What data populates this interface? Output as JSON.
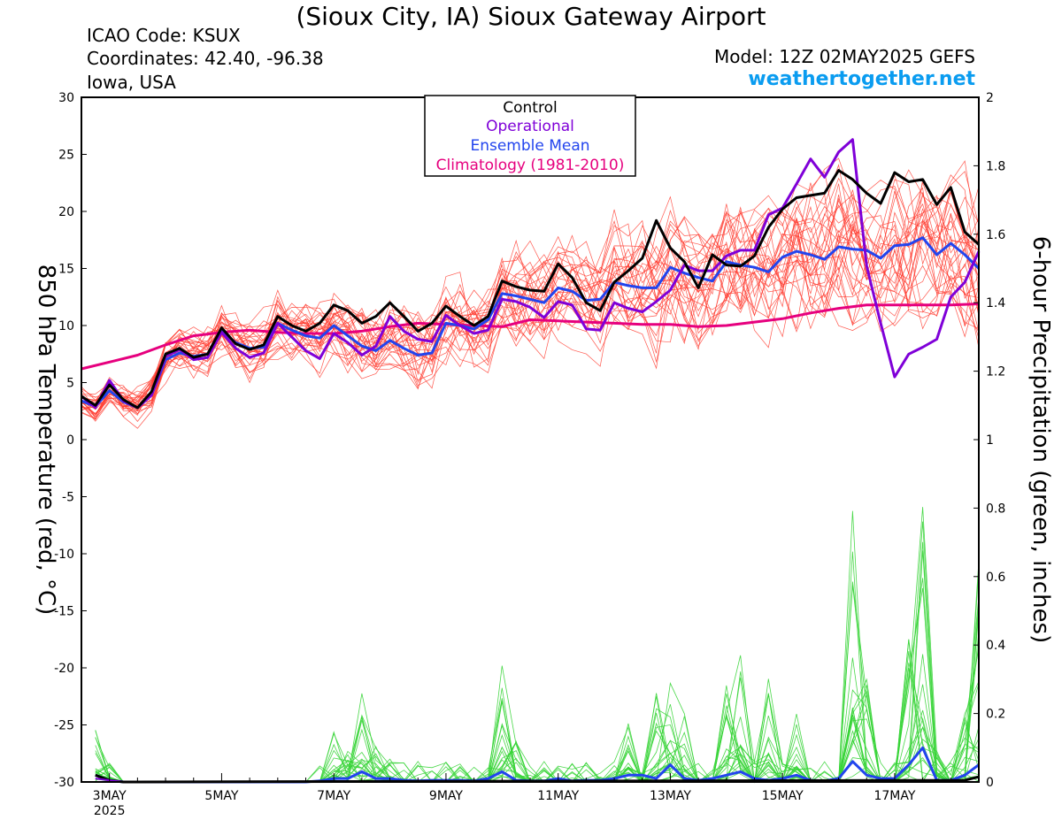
{
  "header": {
    "title": "(Sioux City, IA) Sioux Gateway Airport",
    "icao": "ICAO Code: KSUX",
    "coordinates": "Coordinates: 42.40, -96.38",
    "region": "Iowa, USA",
    "model": "Model: 12Z 02MAY2025 GEFS",
    "site": "weathertogether.net"
  },
  "colors": {
    "control": "#000000",
    "operational": "#7f00d8",
    "ensemble_mean": "#2244ee",
    "climatology": "#e6007e",
    "members_temp": "#ff3b2f",
    "members_precip": "#36d436",
    "site_link": "#0a9cf0"
  },
  "chart_data": {
    "type": "line",
    "ylabel": "850 hPa Temperature (red, °C)",
    "y2label": "6-hour Precipitation (green, inches)",
    "ylim": [
      -30,
      30
    ],
    "y2lim": [
      0,
      2
    ],
    "yticks": [
      "30",
      "25",
      "20",
      "15",
      "10",
      "5",
      "0",
      "-5",
      "-10",
      "-15",
      "-20",
      "-25",
      "-30"
    ],
    "y2ticks": [
      "2",
      "1.8",
      "1.6",
      "1.4",
      "1.2",
      "1",
      "0.8",
      "0.6",
      "0.4",
      "0.2",
      "0"
    ],
    "xticks": [
      {
        "day": 3,
        "label": "3MAY",
        "sub": "2025"
      },
      {
        "day": 5,
        "label": "5MAY"
      },
      {
        "day": 7,
        "label": "7MAY"
      },
      {
        "day": 9,
        "label": "9MAY"
      },
      {
        "day": 11,
        "label": "11MAY"
      },
      {
        "day": 13,
        "label": "13MAY"
      },
      {
        "day": 15,
        "label": "15MAY"
      },
      {
        "day": 17,
        "label": "17MAY"
      }
    ],
    "xlim_days": [
      2.5,
      18.5
    ],
    "legend": [
      "Control",
      "Operational",
      "Ensemble Mean",
      "Climatology (1981-2010)"
    ],
    "grid": false,
    "series": [
      {
        "name": "Control",
        "x": [
          2.5,
          2.75,
          3.0,
          3.25,
          3.5,
          3.75,
          4.0,
          4.25,
          4.5,
          4.75,
          5.0,
          5.25,
          5.5,
          5.75,
          6.0,
          6.25,
          6.5,
          6.75,
          7.0,
          7.25,
          7.5,
          7.75,
          8.0,
          8.25,
          8.5,
          8.75,
          9.0,
          9.25,
          9.5,
          9.75,
          10.0,
          10.25,
          10.5,
          10.75,
          11.0,
          11.25,
          11.5,
          11.75,
          12.0,
          12.25,
          12.5,
          12.75,
          13.0,
          13.25,
          13.5,
          13.75,
          14.0,
          14.25,
          14.5,
          14.75,
          15.0,
          15.25,
          15.5,
          15.75,
          16.0,
          16.25,
          16.5,
          16.75,
          17.0,
          17.25,
          17.5,
          17.75,
          18.0,
          18.25,
          18.5
        ],
        "y": [
          3.8,
          3.0,
          4.8,
          3.5,
          2.8,
          4.2,
          7.5,
          8.0,
          7.2,
          7.5,
          9.8,
          8.4,
          7.9,
          8.3,
          10.8,
          10.0,
          9.5,
          10.2,
          11.8,
          11.3,
          10.2,
          10.8,
          12.0,
          10.8,
          9.5,
          10.2,
          11.7,
          10.8,
          10.0,
          10.8,
          13.9,
          13.4,
          13.1,
          13.0,
          15.4,
          14.2,
          12.0,
          11.3,
          13.8,
          14.8,
          15.9,
          19.2,
          16.8,
          15.6,
          13.3,
          16.2,
          15.3,
          15.2,
          16.1,
          18.6,
          20.2,
          21.2,
          21.4,
          21.6,
          23.6,
          22.8,
          21.6,
          20.7,
          23.4,
          22.6,
          22.8,
          20.6,
          22.1,
          18.2,
          17.1
        ]
      },
      {
        "name": "Operational",
        "x": [
          2.5,
          2.75,
          3.0,
          3.25,
          3.5,
          3.75,
          4.0,
          4.25,
          4.5,
          4.75,
          5.0,
          5.25,
          5.5,
          5.75,
          6.0,
          6.25,
          6.5,
          6.75,
          7.0,
          7.25,
          7.5,
          7.75,
          8.0,
          8.25,
          8.5,
          8.75,
          9.0,
          9.25,
          9.5,
          9.75,
          10.0,
          10.25,
          10.5,
          10.75,
          11.0,
          11.25,
          11.5,
          11.75,
          12.0,
          12.25,
          12.5,
          12.75,
          13.0,
          13.25,
          13.5,
          13.75,
          14.0,
          14.25,
          14.5,
          14.75,
          15.0,
          15.25,
          15.5,
          15.75,
          16.0,
          16.25,
          16.5,
          16.75,
          17.0,
          17.25,
          17.5,
          17.75,
          18.0,
          18.25,
          18.5
        ],
        "y": [
          3.8,
          2.8,
          5.2,
          3.4,
          2.8,
          3.9,
          7.3,
          7.9,
          7.0,
          7.2,
          9.4,
          8.0,
          7.2,
          7.6,
          10.2,
          9.0,
          7.8,
          7.1,
          9.3,
          8.5,
          7.4,
          8.2,
          10.8,
          9.5,
          8.8,
          8.6,
          10.9,
          10.0,
          9.3,
          9.6,
          12.3,
          12.1,
          11.6,
          10.7,
          12.1,
          11.8,
          9.7,
          9.6,
          12.0,
          11.5,
          11.2,
          12.1,
          13.1,
          15.3,
          14.8,
          14.8,
          16.1,
          16.6,
          16.6,
          19.7,
          20.3,
          22.4,
          24.6,
          23.0,
          25.2,
          26.3,
          15.2,
          10.2,
          5.5,
          7.5,
          8.1,
          8.8,
          12.5,
          13.8,
          16.5
        ]
      },
      {
        "name": "Ensemble Mean",
        "x": [
          2.5,
          2.75,
          3.0,
          3.25,
          3.5,
          3.75,
          4.0,
          4.25,
          4.5,
          4.75,
          5.0,
          5.25,
          5.5,
          5.75,
          6.0,
          6.25,
          6.5,
          6.75,
          7.0,
          7.25,
          7.5,
          7.75,
          8.0,
          8.25,
          8.5,
          8.75,
          9.0,
          9.25,
          9.5,
          9.75,
          10.0,
          10.25,
          10.5,
          10.75,
          11.0,
          11.25,
          11.5,
          11.75,
          12.0,
          12.25,
          12.5,
          12.75,
          13.0,
          13.25,
          13.5,
          13.75,
          14.0,
          14.25,
          14.5,
          14.75,
          15.0,
          15.25,
          15.5,
          15.75,
          16.0,
          16.25,
          16.5,
          16.75,
          17.0,
          17.25,
          17.5,
          17.75,
          18.0,
          18.25,
          18.5
        ],
        "y": [
          3.4,
          2.9,
          4.3,
          3.3,
          2.8,
          3.9,
          7.0,
          7.6,
          7.3,
          7.5,
          9.5,
          8.5,
          8.0,
          8.1,
          10.2,
          9.6,
          9.1,
          8.9,
          10.0,
          9.1,
          8.2,
          7.8,
          8.7,
          8.0,
          7.4,
          7.6,
          10.2,
          10.0,
          9.7,
          10.5,
          12.8,
          12.6,
          12.3,
          12.0,
          13.3,
          13.0,
          12.2,
          12.3,
          13.8,
          13.5,
          13.3,
          13.3,
          15.1,
          14.6,
          14.2,
          13.9,
          15.6,
          15.3,
          15.1,
          14.7,
          16.0,
          16.5,
          16.2,
          15.8,
          16.9,
          16.7,
          16.6,
          15.9,
          17.0,
          17.1,
          17.7,
          16.2,
          17.2,
          16.2,
          15.0
        ]
      },
      {
        "name": "Climatology (1981-2010)",
        "x": [
          2.5,
          3.0,
          3.5,
          4.0,
          4.5,
          5.0,
          5.5,
          6.0,
          6.5,
          7.0,
          7.5,
          8.0,
          8.5,
          9.0,
          9.5,
          10.0,
          10.5,
          11.0,
          11.5,
          12.0,
          12.5,
          13.0,
          13.5,
          14.0,
          14.5,
          15.0,
          15.5,
          16.0,
          16.5,
          17.0,
          17.5,
          18.0,
          18.5
        ],
        "y": [
          6.2,
          6.8,
          7.4,
          8.3,
          9.1,
          9.4,
          9.6,
          9.4,
          9.3,
          9.3,
          9.5,
          9.9,
          10.2,
          10.1,
          10.0,
          9.9,
          10.5,
          10.4,
          10.3,
          10.2,
          10.1,
          10.1,
          9.9,
          10.0,
          10.3,
          10.6,
          11.1,
          11.5,
          11.8,
          11.8,
          11.8,
          11.8,
          11.9
        ]
      }
    ],
    "precip_series": [
      {
        "name": "Ensemble Mean",
        "x": [
          2.75,
          3.0,
          3.25,
          3.5,
          3.75,
          4.0,
          4.25,
          4.5,
          4.75,
          5.0,
          5.25,
          5.5,
          5.75,
          6.0,
          6.25,
          6.5,
          6.75,
          7.0,
          7.25,
          7.5,
          7.75,
          8.0,
          8.25,
          8.5,
          8.75,
          9.0,
          9.25,
          9.5,
          9.75,
          10.0,
          10.25,
          10.5,
          10.75,
          11.0,
          11.25,
          11.5,
          11.75,
          12.0,
          12.25,
          12.5,
          12.75,
          13.0,
          13.25,
          13.5,
          13.75,
          14.0,
          14.25,
          14.5,
          14.75,
          15.0,
          15.25,
          15.5,
          15.75,
          16.0,
          16.25,
          16.5,
          16.75,
          17.0,
          17.25,
          17.5,
          17.75,
          18.0,
          18.25,
          18.5
        ],
        "y": [
          0.02,
          0.005,
          0,
          0,
          0,
          0,
          0,
          0,
          0,
          0,
          0,
          0,
          0,
          0,
          0,
          0,
          0.003,
          0.01,
          0.01,
          0.03,
          0.01,
          0.01,
          0.005,
          0.003,
          0.005,
          0.005,
          0.005,
          0.003,
          0.01,
          0.03,
          0.005,
          0.003,
          0.003,
          0.01,
          0.003,
          0.005,
          0.005,
          0.01,
          0.02,
          0.02,
          0.01,
          0.05,
          0.01,
          0.005,
          0.01,
          0.02,
          0.03,
          0.01,
          0.005,
          0.01,
          0.02,
          0.005,
          0.003,
          0.01,
          0.06,
          0.02,
          0.01,
          0.01,
          0.05,
          0.1,
          0.005,
          0.005,
          0.02,
          0.05
        ]
      },
      {
        "name": "Control",
        "x": [
          2.75,
          3.0,
          3.25,
          3.5,
          18.25,
          18.5
        ],
        "y": [
          0.02,
          0.005,
          0,
          0,
          0.005,
          0.015
        ]
      },
      {
        "name": "Operational",
        "x": [
          2.75,
          3.0,
          3.25,
          3.5
        ],
        "y": [
          0.01,
          0.005,
          0,
          0
        ]
      }
    ]
  }
}
